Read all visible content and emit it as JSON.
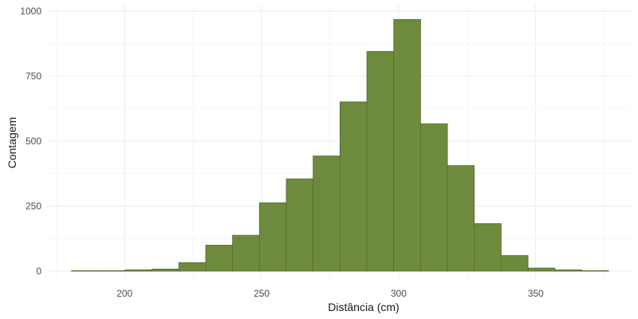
{
  "chart_data": {
    "type": "bar",
    "subtype": "histogram",
    "xlabel": "Distância (cm)",
    "ylabel": "Contagem",
    "xlim": [
      172,
      385
    ],
    "ylim": [
      0,
      1000
    ],
    "x_ticks": [
      200,
      250,
      300,
      350
    ],
    "y_ticks": [
      0,
      250,
      500,
      750,
      1000
    ],
    "grid": true,
    "bar_color": "#6e8b3d",
    "bar_edge_color": "#556b2f",
    "bins": [
      {
        "start": 180.6,
        "end": 190.4,
        "count": 1
      },
      {
        "start": 190.4,
        "end": 200.2,
        "count": 1
      },
      {
        "start": 200.2,
        "end": 210.0,
        "count": 5
      },
      {
        "start": 210.0,
        "end": 219.8,
        "count": 8
      },
      {
        "start": 219.8,
        "end": 229.6,
        "count": 33
      },
      {
        "start": 229.6,
        "end": 239.4,
        "count": 100
      },
      {
        "start": 239.4,
        "end": 249.2,
        "count": 138
      },
      {
        "start": 249.2,
        "end": 259.0,
        "count": 263
      },
      {
        "start": 259.0,
        "end": 268.8,
        "count": 355
      },
      {
        "start": 268.8,
        "end": 278.6,
        "count": 443
      },
      {
        "start": 278.6,
        "end": 288.4,
        "count": 651
      },
      {
        "start": 288.4,
        "end": 298.2,
        "count": 845
      },
      {
        "start": 298.2,
        "end": 308.0,
        "count": 968
      },
      {
        "start": 308.0,
        "end": 317.8,
        "count": 567
      },
      {
        "start": 317.8,
        "end": 327.6,
        "count": 406
      },
      {
        "start": 327.6,
        "end": 337.4,
        "count": 183
      },
      {
        "start": 337.4,
        "end": 347.2,
        "count": 60
      },
      {
        "start": 347.2,
        "end": 357.0,
        "count": 12
      },
      {
        "start": 357.0,
        "end": 366.8,
        "count": 5
      },
      {
        "start": 366.8,
        "end": 376.6,
        "count": 1
      }
    ]
  }
}
